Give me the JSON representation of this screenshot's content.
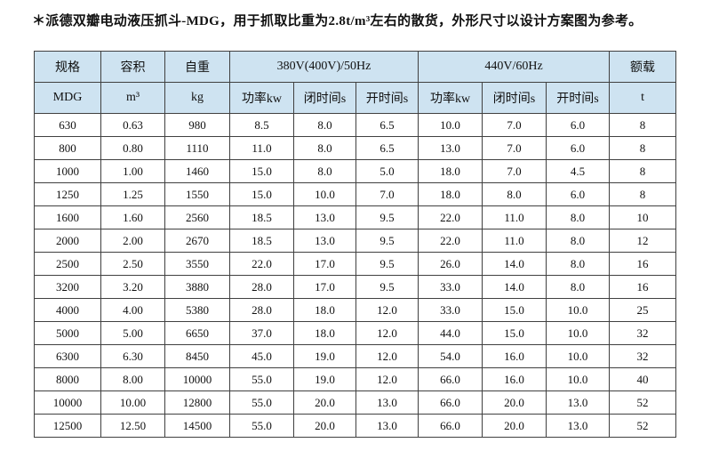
{
  "note": "＊派德双瓣电动液压抓斗-MDG，用于抓取比重为2.8t/m³左右的散货，外形尺寸以设计方案图为参考。",
  "colors": {
    "header_bg": "#cee3f1",
    "border": "#404040",
    "text": "#111111"
  },
  "table": {
    "group_headers": {
      "spec": "规格",
      "capacity": "容积",
      "self_weight": "自重",
      "power_380": "380V(400V)/50Hz",
      "power_440": "440V/60Hz",
      "rated_load": "额载"
    },
    "sub_headers": [
      "MDG",
      "m³",
      "kg",
      "功率kw",
      "闭时间s",
      "开时间s",
      "功率kw",
      "闭时间s",
      "开时间s",
      "t"
    ],
    "rows": [
      [
        "630",
        "0.63",
        "980",
        "8.5",
        "8.0",
        "6.5",
        "10.0",
        "7.0",
        "6.0",
        "8"
      ],
      [
        "800",
        "0.80",
        "1110",
        "11.0",
        "8.0",
        "6.5",
        "13.0",
        "7.0",
        "6.0",
        "8"
      ],
      [
        "1000",
        "1.00",
        "1460",
        "15.0",
        "8.0",
        "5.0",
        "18.0",
        "7.0",
        "4.5",
        "8"
      ],
      [
        "1250",
        "1.25",
        "1550",
        "15.0",
        "10.0",
        "7.0",
        "18.0",
        "8.0",
        "6.0",
        "8"
      ],
      [
        "1600",
        "1.60",
        "2560",
        "18.5",
        "13.0",
        "9.5",
        "22.0",
        "11.0",
        "8.0",
        "10"
      ],
      [
        "2000",
        "2.00",
        "2670",
        "18.5",
        "13.0",
        "9.5",
        "22.0",
        "11.0",
        "8.0",
        "12"
      ],
      [
        "2500",
        "2.50",
        "3550",
        "22.0",
        "17.0",
        "9.5",
        "26.0",
        "14.0",
        "8.0",
        "16"
      ],
      [
        "3200",
        "3.20",
        "3880",
        "28.0",
        "17.0",
        "9.5",
        "33.0",
        "14.0",
        "8.0",
        "16"
      ],
      [
        "4000",
        "4.00",
        "5380",
        "28.0",
        "18.0",
        "12.0",
        "33.0",
        "15.0",
        "10.0",
        "25"
      ],
      [
        "5000",
        "5.00",
        "6650",
        "37.0",
        "18.0",
        "12.0",
        "44.0",
        "15.0",
        "10.0",
        "32"
      ],
      [
        "6300",
        "6.30",
        "8450",
        "45.0",
        "19.0",
        "12.0",
        "54.0",
        "16.0",
        "10.0",
        "32"
      ],
      [
        "8000",
        "8.00",
        "10000",
        "55.0",
        "19.0",
        "12.0",
        "66.0",
        "16.0",
        "10.0",
        "40"
      ],
      [
        "10000",
        "10.00",
        "12800",
        "55.0",
        "20.0",
        "13.0",
        "66.0",
        "20.0",
        "13.0",
        "52"
      ],
      [
        "12500",
        "12.50",
        "14500",
        "55.0",
        "20.0",
        "13.0",
        "66.0",
        "20.0",
        "13.0",
        "52"
      ]
    ]
  }
}
